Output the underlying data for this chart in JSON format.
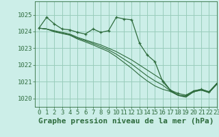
{
  "bg_color": "#cceee8",
  "grid_color": "#99ccbb",
  "line_color": "#2d6b3c",
  "title": "Graphe pression niveau de la mer (hPa)",
  "xlim": [
    -0.5,
    23
  ],
  "ylim": [
    1019.5,
    1025.8
  ],
  "yticks": [
    1020,
    1021,
    1022,
    1023,
    1024,
    1025
  ],
  "xticks": [
    0,
    1,
    2,
    3,
    4,
    5,
    6,
    7,
    8,
    9,
    10,
    11,
    12,
    13,
    14,
    15,
    16,
    17,
    18,
    19,
    20,
    21,
    22,
    23
  ],
  "series": [
    [
      1024.2,
      1024.85,
      1024.45,
      1024.15,
      1024.1,
      1023.95,
      1023.85,
      1024.15,
      1023.95,
      1024.05,
      1024.85,
      1024.75,
      1024.7,
      1023.3,
      1022.6,
      1022.2,
      1021.0,
      1020.5,
      1020.3,
      1020.2,
      1020.45,
      1020.55,
      1020.4,
      1020.9
    ],
    [
      1024.2,
      1024.15,
      1024.05,
      1023.95,
      1023.85,
      1023.65,
      1023.5,
      1023.35,
      1023.2,
      1023.0,
      1022.8,
      1022.55,
      1022.3,
      1022.0,
      1021.7,
      1021.4,
      1021.1,
      1020.5,
      1020.2,
      1020.15,
      1020.45,
      1020.55,
      1020.4,
      1020.9
    ],
    [
      1024.2,
      1024.15,
      1024.0,
      1023.9,
      1023.8,
      1023.6,
      1023.45,
      1023.28,
      1023.1,
      1022.9,
      1022.65,
      1022.35,
      1022.05,
      1021.7,
      1021.35,
      1021.05,
      1020.8,
      1020.45,
      1020.2,
      1020.1,
      1020.4,
      1020.5,
      1020.35,
      1020.85
    ],
    [
      1024.2,
      1024.15,
      1023.98,
      1023.88,
      1023.78,
      1023.55,
      1023.38,
      1023.2,
      1023.0,
      1022.8,
      1022.5,
      1022.15,
      1021.8,
      1021.4,
      1021.05,
      1020.75,
      1020.55,
      1020.42,
      1020.18,
      1020.08,
      1020.4,
      1020.5,
      1020.35,
      1020.85
    ]
  ],
  "title_fontsize": 8,
  "tick_fontsize": 6.5
}
